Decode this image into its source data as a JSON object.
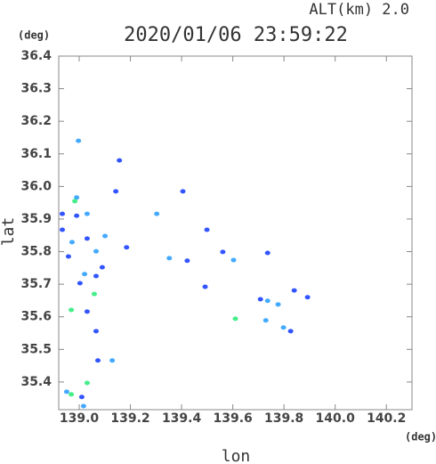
{
  "chart_data": {
    "type": "scatter",
    "title": "2020/01/06 23:59:22",
    "subtitle": "ALT(km) 2.0",
    "y_unit": "(deg)",
    "x_unit": "(deg)",
    "x_label": "lon",
    "y_label": "lat",
    "xlim": [
      138.92,
      140.3
    ],
    "ylim": [
      35.315,
      36.4
    ],
    "xticks": [
      {
        "value": 139,
        "label": "139.0"
      },
      139.2,
      139.4,
      139.6,
      139.8,
      {
        "value": 140,
        "label": "140.0"
      },
      140.2
    ],
    "yticks": [
      35.4,
      35.5,
      35.6,
      35.7,
      35.8,
      35.9,
      {
        "value": 36,
        "label": "36.0"
      },
      36.1,
      36.2,
      36.3,
      36.4
    ],
    "x": [
      138.997,
      139.157,
      138.99,
      138.99,
      138.934,
      139.031,
      138.983,
      139.143,
      139.303,
      139.405,
      138.972,
      139.031,
      139.101,
      138.958,
      139.066,
      139.021,
      138.934,
      139.003,
      139.066,
      139.09,
      139.059,
      138.969,
      139.031,
      139.066,
      139.073,
      139.129,
      138.951,
      138.969,
      139.01,
      139.017,
      139.031,
      139.352,
      139.422,
      139.499,
      139.492,
      139.561,
      139.603,
      139.736,
      139.708,
      139.736,
      139.777,
      139.84,
      139.892,
      139.729,
      139.798,
      139.826,
      139.61,
      139.185
    ],
    "y": [
      36.14,
      36.08,
      35.966,
      35.91,
      35.916,
      35.916,
      35.955,
      35.985,
      35.916,
      35.985,
      35.829,
      35.84,
      35.848,
      35.785,
      35.801,
      35.731,
      35.867,
      35.703,
      35.725,
      35.752,
      35.67,
      35.621,
      35.616,
      35.556,
      35.466,
      35.466,
      35.37,
      35.362,
      35.354,
      35.326,
      35.397,
      35.78,
      35.772,
      35.867,
      35.692,
      35.799,
      35.774,
      35.796,
      35.654,
      35.649,
      35.638,
      35.681,
      35.66,
      35.589,
      35.567,
      35.556,
      35.594,
      35.813
    ],
    "colors": [
      "#44aaff",
      "#3355ff",
      "#44aaff",
      "#3355ff",
      "#3355ff",
      "#44aaff",
      "#44ee88",
      "#3355ff",
      "#44aaff",
      "#3355ff",
      "#44aaff",
      "#3355ff",
      "#44aaff",
      "#3355ff",
      "#44aaff",
      "#44aaff",
      "#3355ff",
      "#3355ff",
      "#3355ff",
      "#3355ff",
      "#44ee88",
      "#44ee88",
      "#3355ff",
      "#3355ff",
      "#3355ff",
      "#44aaff",
      "#44aaff",
      "#44ee88",
      "#3355ff",
      "#44aaff",
      "#44ee88",
      "#44aaff",
      "#3355ff",
      "#3355ff",
      "#3355ff",
      "#3355ff",
      "#44aaff",
      "#3355ff",
      "#3355ff",
      "#44aaff",
      "#44aaff",
      "#3355ff",
      "#3355ff",
      "#44aaff",
      "#44aaff",
      "#3355ff",
      "#44ee88",
      "#3355ff"
    ]
  }
}
